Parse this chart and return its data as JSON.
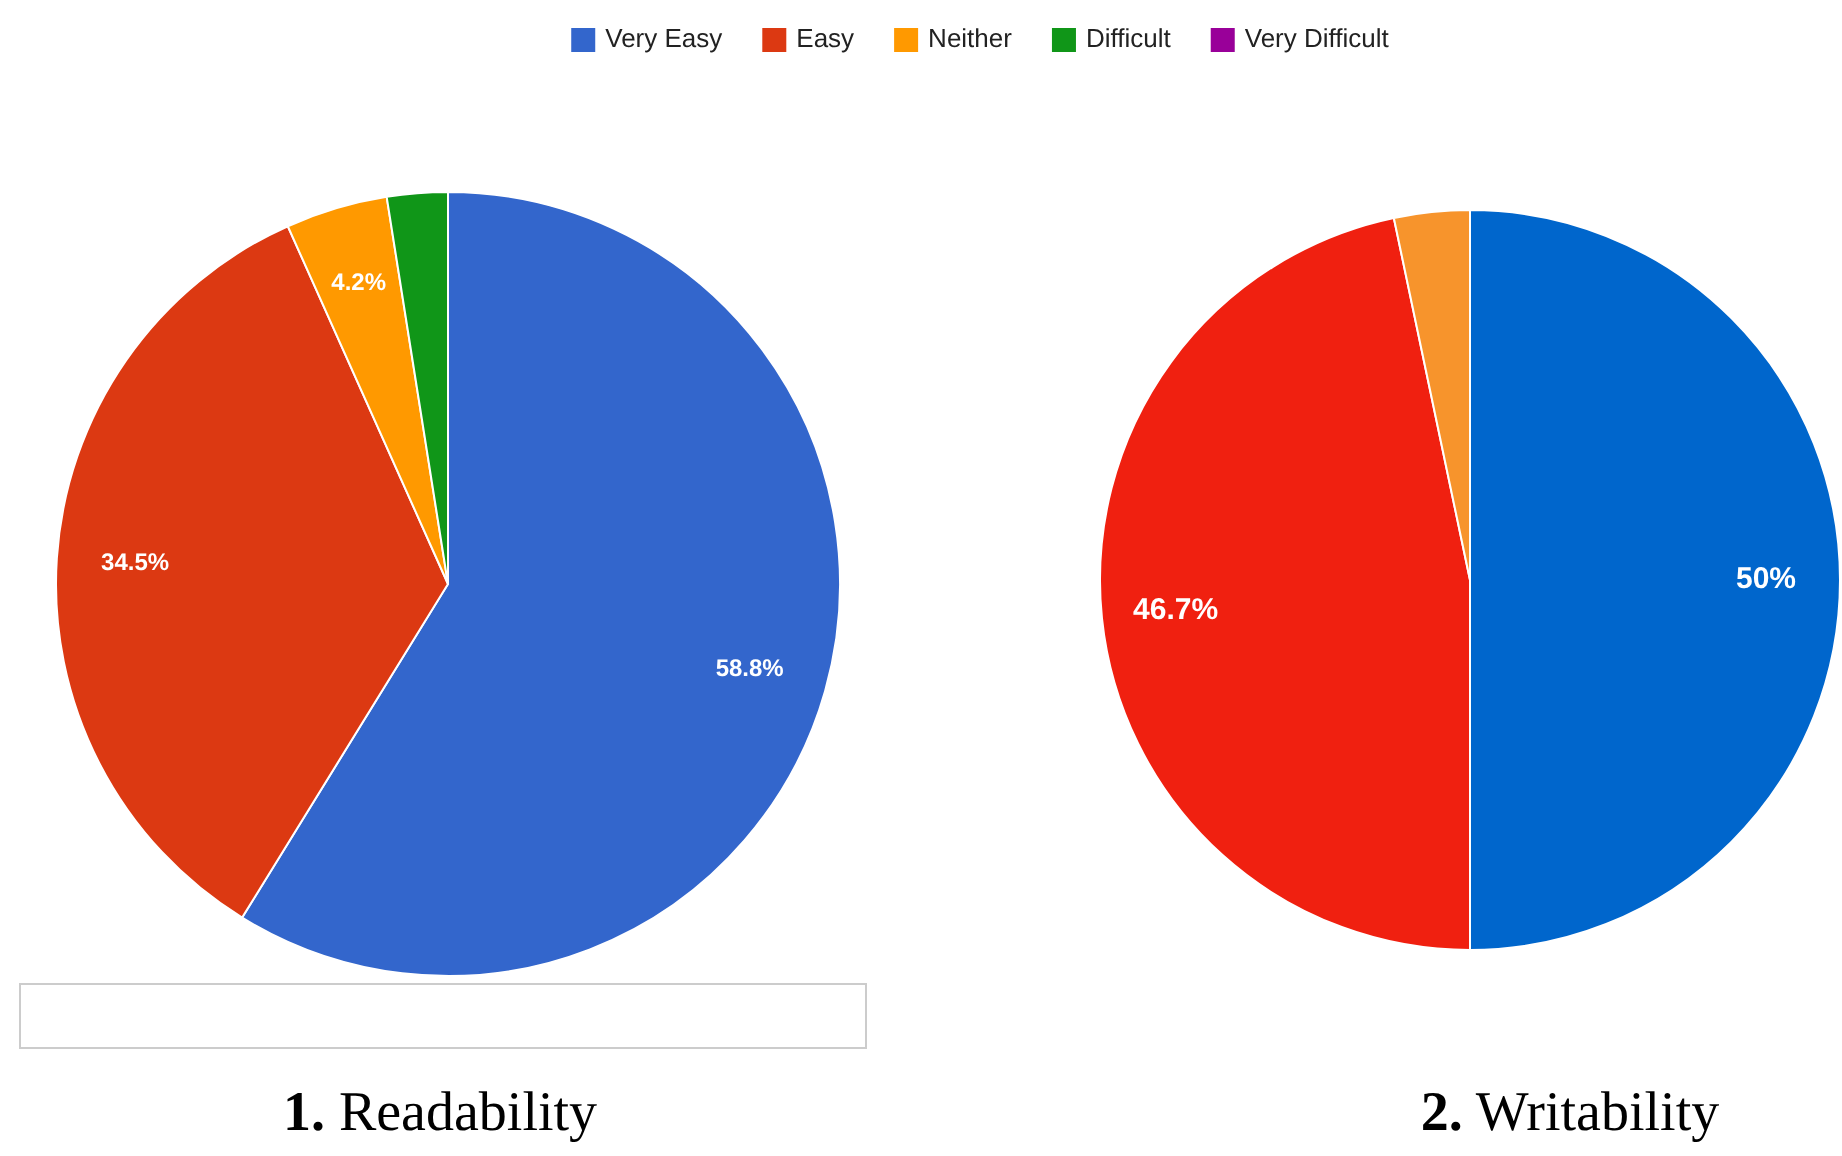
{
  "chart_data": [
    {
      "type": "pie",
      "title": "1. Readability",
      "categories": [
        "Very Easy",
        "Easy",
        "Neither",
        "Difficult",
        "Very Difficult"
      ],
      "values": [
        58.8,
        34.5,
        4.2,
        2.5,
        0
      ],
      "colors": [
        "#3366cc",
        "#dc3912",
        "#ff9900",
        "#109618",
        "#990099"
      ],
      "value_labels": [
        "58.8%",
        "34.5%",
        "4.2%",
        null,
        null
      ],
      "legend": "top"
    },
    {
      "type": "pie",
      "title": "2. Writability",
      "categories": [
        null,
        null,
        null
      ],
      "values": [
        50,
        46.7,
        3.3
      ],
      "colors": [
        "#0066cc",
        "#f02010",
        "#f7942c"
      ],
      "value_labels": [
        "50%",
        "46.7%",
        null
      ],
      "legend": false
    }
  ]
}
